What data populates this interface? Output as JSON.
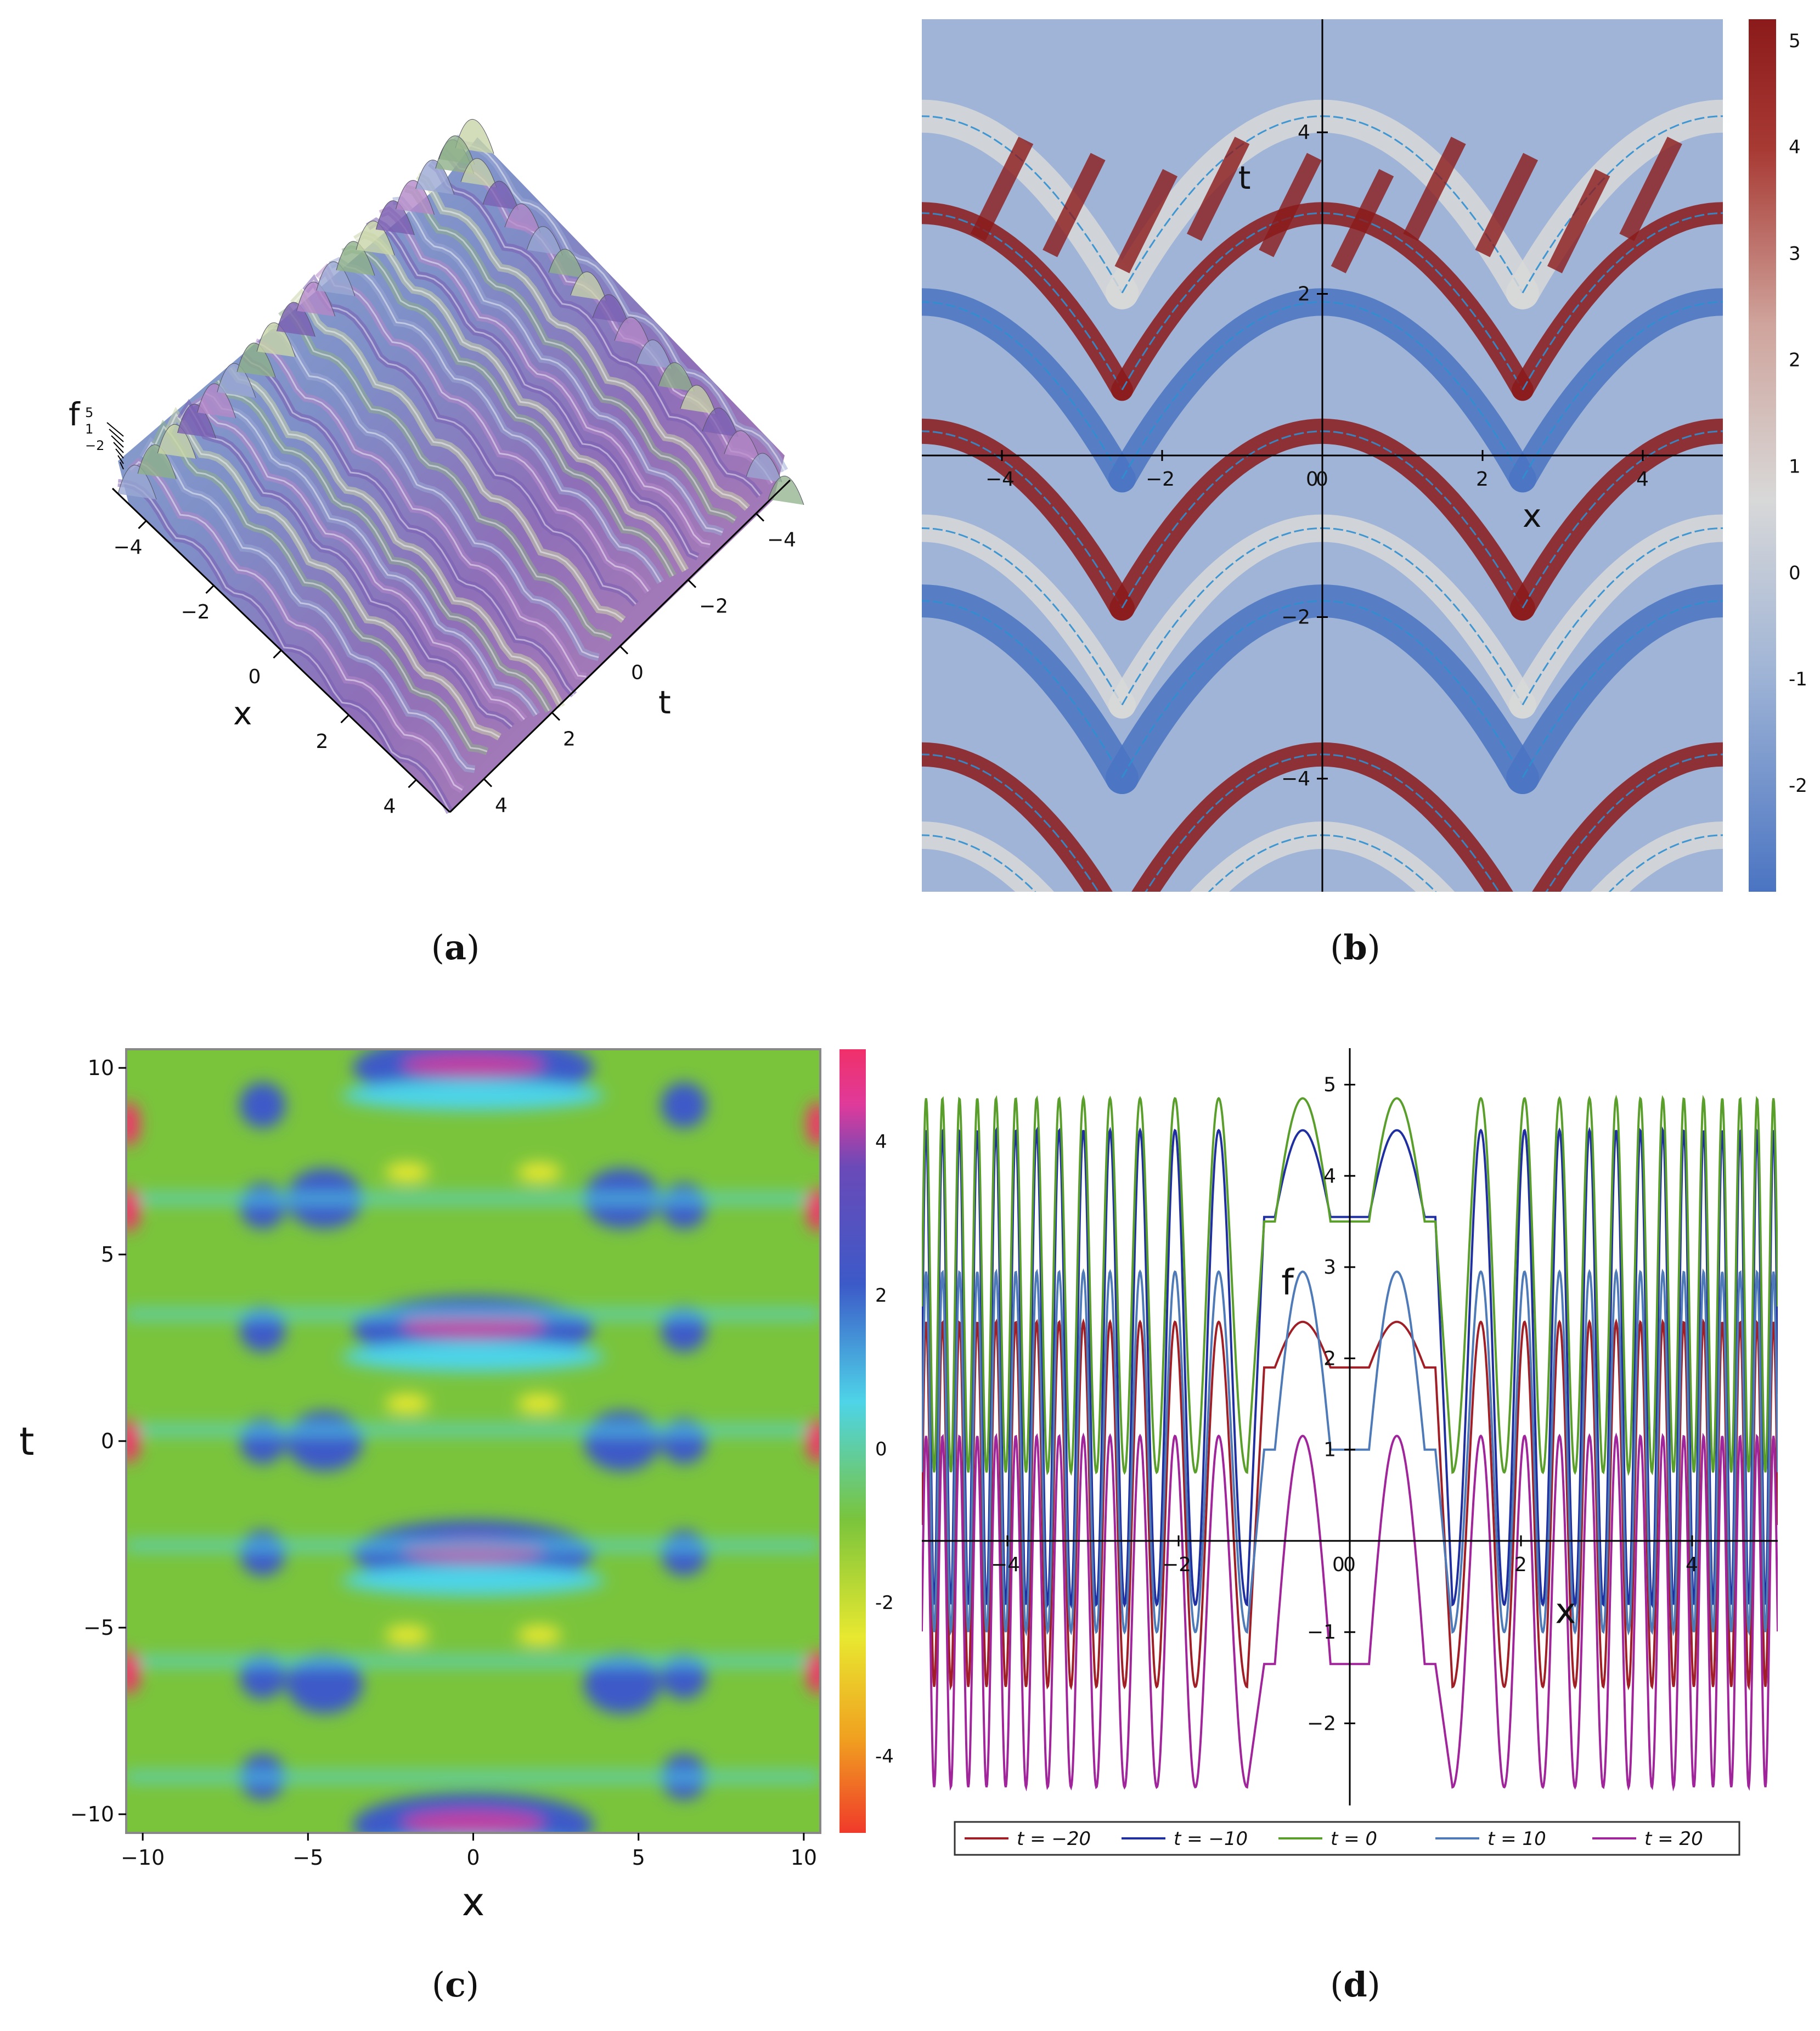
{
  "captions": [
    "(a)",
    "(b)",
    "(c)",
    "(d)"
  ],
  "caption_letters": [
    "a",
    "b",
    "c",
    "d"
  ],
  "chart_data": [
    {
      "type": "surface",
      "panel": "a",
      "xlabel": "x",
      "ylabel": "t",
      "zlabel": "f",
      "x_ticks": [
        -4,
        -2,
        0,
        2,
        4
      ],
      "t_ticks": [
        -4,
        -2,
        0,
        2,
        4
      ],
      "z_ticks": [
        5,
        1,
        -2
      ],
      "z_tick_labels": [
        "5",
        "1",
        "−2"
      ],
      "colors": [
        "#7a5fb2",
        "#b488c8",
        "#9aa8d2",
        "#8fb08a",
        "#c8d4a8"
      ]
    },
    {
      "type": "heatmap",
      "panel": "b",
      "xlabel": "x",
      "ylabel": "t",
      "x_ticks": [
        -4,
        -2,
        0,
        2,
        4
      ],
      "t_ticks": [
        -4,
        -2,
        2,
        4
      ],
      "xlim": [
        -5,
        5
      ],
      "ylim": [
        -5.4,
        5.4
      ],
      "colorbar_ticks": [
        5,
        4,
        3,
        2,
        1,
        0,
        -1,
        -2
      ],
      "colorbar_labels": [
        "5",
        "4",
        "3",
        "2",
        "1",
        "0",
        "-1",
        "-2"
      ],
      "zlim": [
        -3,
        5.2
      ],
      "colormap": [
        "#4a74c2",
        "#9fb4d6",
        "#d8d8d8",
        "#cfa49c",
        "#a83a34",
        "#8b1a1a"
      ]
    },
    {
      "type": "heatmap",
      "panel": "c",
      "xlabel": "x",
      "ylabel": "t",
      "x_ticks": [
        -10,
        -5,
        0,
        5,
        10
      ],
      "t_ticks": [
        -10,
        -5,
        0,
        5,
        10
      ],
      "xlim": [
        -10.5,
        10.5
      ],
      "ylim": [
        -10.5,
        10.5
      ],
      "colorbar_ticks": [
        4,
        2,
        0,
        -2,
        -4
      ],
      "colorbar_labels": [
        "4",
        "2",
        "0",
        "-2",
        "-4"
      ],
      "zlim": [
        -5,
        5.2
      ],
      "colormap": [
        "#f03a2a",
        "#f0a020",
        "#e8e830",
        "#7ac43c",
        "#4ed4e8",
        "#3c5ac8",
        "#6a4ab8",
        "#e03a9a",
        "#f0306a"
      ]
    },
    {
      "type": "line",
      "panel": "d",
      "xlabel": "x",
      "ylabel": "f",
      "xlim": [
        -5,
        5
      ],
      "ylim": [
        -2.9,
        5.4
      ],
      "x_ticks": [
        -4,
        -2,
        0,
        2,
        4
      ],
      "y_ticks": [
        -2,
        -1,
        1,
        2,
        3,
        4,
        5
      ],
      "series": [
        {
          "name": "t = −20",
          "t": -20,
          "color": "#a01f26",
          "max": 2.4,
          "min": -1.6,
          "center": 1.9
        },
        {
          "name": "t = −10",
          "t": -10,
          "color": "#1f2fa0",
          "max": 4.5,
          "min": -0.7,
          "center": 3.55
        },
        {
          "name": "t = 0",
          "t": 0,
          "color": "#5a9e2c",
          "max": 4.85,
          "min": 0.75,
          "center": 3.5
        },
        {
          "name": "t = 10",
          "t": 10,
          "color": "#4f7ab8",
          "max": 2.95,
          "min": -1.0,
          "center": 1.0
        },
        {
          "name": "t = 20",
          "t": 20,
          "color": "#a0259a",
          "max": 1.15,
          "min": -2.7,
          "center": -1.35
        }
      ],
      "legend_position": "bottom"
    }
  ]
}
